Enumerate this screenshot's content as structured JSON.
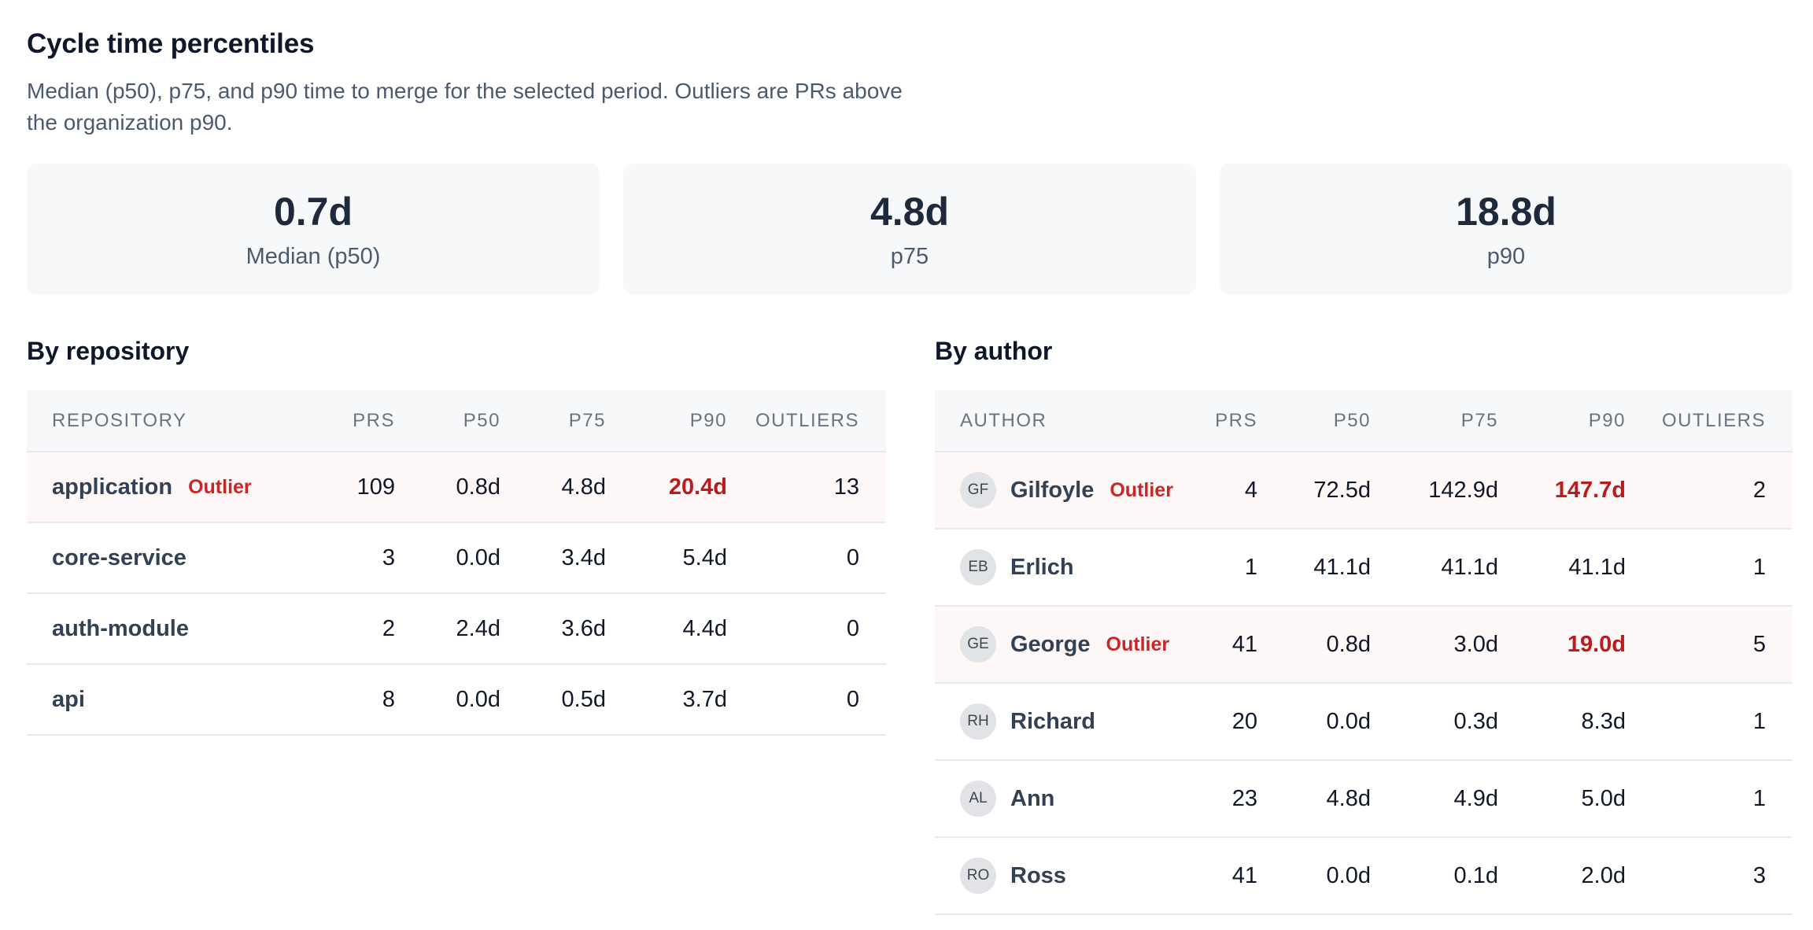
{
  "header": {
    "title": "Cycle time percentiles",
    "subtitle": "Median (p50), p75, and p90 time to merge for the selected period. Outliers are PRs above the organization p90."
  },
  "stats": [
    {
      "value": "0.7d",
      "label": "Median (p50)"
    },
    {
      "value": "4.8d",
      "label": "p75"
    },
    {
      "value": "18.8d",
      "label": "p90"
    }
  ],
  "by_repository": {
    "title": "By repository",
    "columns": [
      "Repository",
      "PRs",
      "P50",
      "P75",
      "P90",
      "Outliers"
    ],
    "rows": [
      {
        "name": "application",
        "outlier": true,
        "badge": "Outlier",
        "prs": "109",
        "p50": "0.8d",
        "p75": "4.8d",
        "p90": "20.4d",
        "outliers": "13"
      },
      {
        "name": "core-service",
        "outlier": false,
        "badge": "",
        "prs": "3",
        "p50": "0.0d",
        "p75": "3.4d",
        "p90": "5.4d",
        "outliers": "0"
      },
      {
        "name": "auth-module",
        "outlier": false,
        "badge": "",
        "prs": "2",
        "p50": "2.4d",
        "p75": "3.6d",
        "p90": "4.4d",
        "outliers": "0"
      },
      {
        "name": "api",
        "outlier": false,
        "badge": "",
        "prs": "8",
        "p50": "0.0d",
        "p75": "0.5d",
        "p90": "3.7d",
        "outliers": "0"
      }
    ]
  },
  "by_author": {
    "title": "By author",
    "columns": [
      "Author",
      "PRs",
      "P50",
      "P75",
      "P90",
      "Outliers"
    ],
    "rows": [
      {
        "initials": "GF",
        "name": "Gilfoyle",
        "outlier": true,
        "badge": "Outlier",
        "prs": "4",
        "p50": "72.5d",
        "p75": "142.9d",
        "p90": "147.7d",
        "outliers": "2"
      },
      {
        "initials": "EB",
        "name": "Erlich",
        "outlier": false,
        "badge": "",
        "prs": "1",
        "p50": "41.1d",
        "p75": "41.1d",
        "p90": "41.1d",
        "outliers": "1"
      },
      {
        "initials": "GE",
        "name": "George",
        "outlier": true,
        "badge": "Outlier",
        "prs": "41",
        "p50": "0.8d",
        "p75": "3.0d",
        "p90": "19.0d",
        "outliers": "5"
      },
      {
        "initials": "RH",
        "name": "Richard",
        "outlier": false,
        "badge": "",
        "prs": "20",
        "p50": "0.0d",
        "p75": "0.3d",
        "p90": "8.3d",
        "outliers": "1"
      },
      {
        "initials": "AL",
        "name": "Ann",
        "outlier": false,
        "badge": "",
        "prs": "23",
        "p50": "4.8d",
        "p75": "4.9d",
        "p90": "5.0d",
        "outliers": "1"
      },
      {
        "initials": "RO",
        "name": "Ross",
        "outlier": false,
        "badge": "",
        "prs": "41",
        "p50": "0.0d",
        "p75": "0.1d",
        "p90": "2.0d",
        "outliers": "3"
      }
    ]
  },
  "colors": {
    "outlier_text": "#c62828",
    "outlier_row_bg": "#fdf7f7",
    "card_bg": "#f7f8fa"
  }
}
